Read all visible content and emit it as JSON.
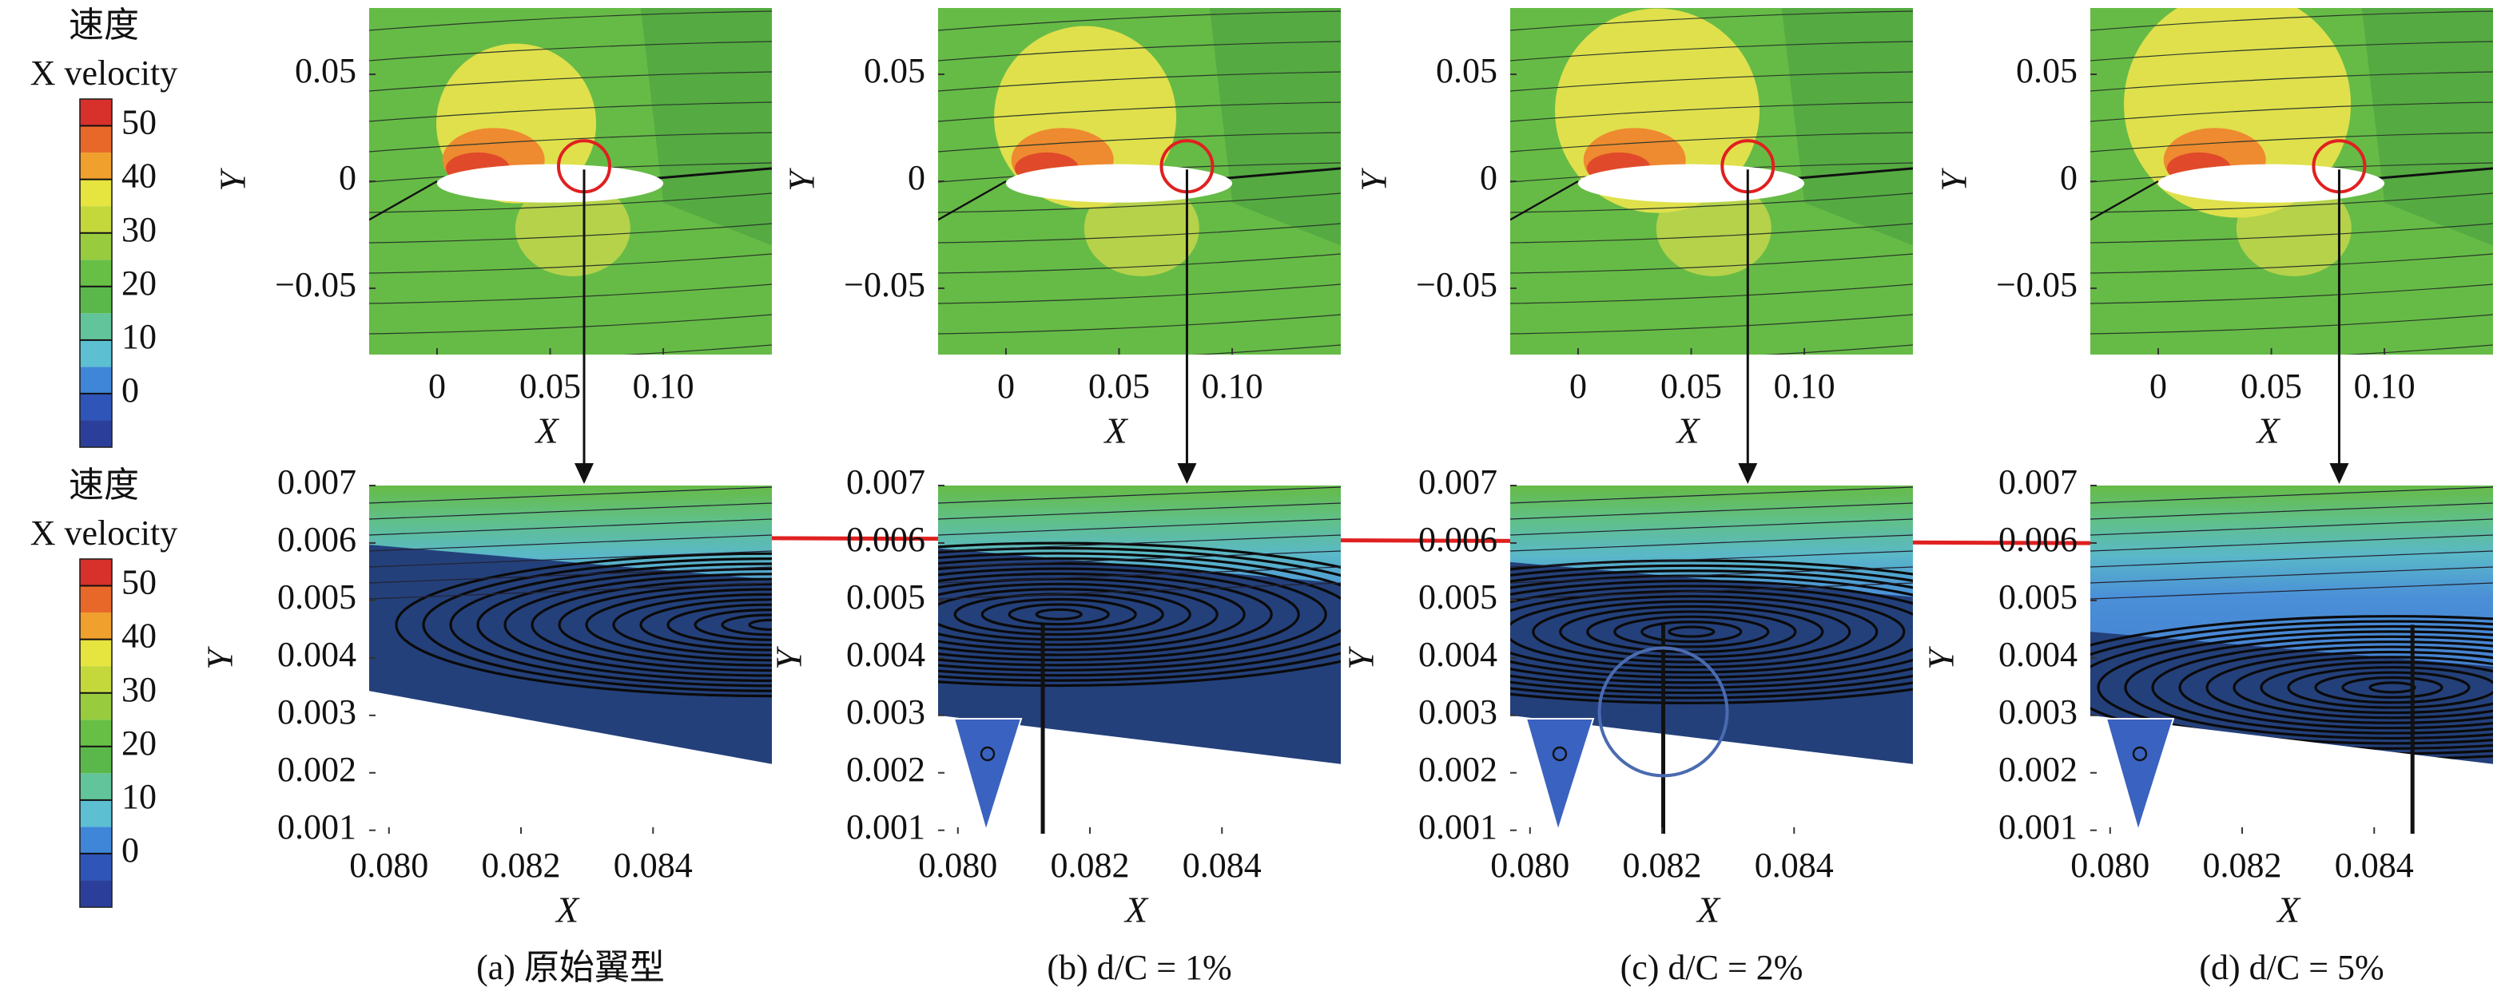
{
  "chart_data": [
    {
      "type": "colorbar",
      "title": [
        "速度",
        "X velocity"
      ],
      "ticks": [
        50,
        40,
        30,
        20,
        10,
        0
      ],
      "ylim": [
        -10,
        55
      ],
      "colors": [
        "#2b3f9a",
        "#2f55b8",
        "#3f86d8",
        "#5cc0d2",
        "#62c49a",
        "#5ab84a",
        "#68bf46",
        "#98cc3e",
        "#c4d83c",
        "#e6e43e",
        "#f0a02c",
        "#e8682a",
        "#d8302a"
      ]
    },
    {
      "type": "colorbar",
      "title": [
        "速度",
        "X velocity"
      ],
      "ticks": [
        50,
        40,
        30,
        20,
        10,
        0
      ],
      "ylim": [
        -10,
        55
      ],
      "colors": [
        "#2b3f9a",
        "#2f55b8",
        "#3f86d8",
        "#5cc0d2",
        "#62c49a",
        "#5ab84a",
        "#68bf46",
        "#98cc3e",
        "#c4d83c",
        "#e6e43e",
        "#f0a02c",
        "#e8682a",
        "#d8302a"
      ]
    },
    {
      "type": "contour",
      "xlabel": "X",
      "ylabel": "Y",
      "xlim": [
        -0.03,
        0.148
      ],
      "ylim": [
        -0.081,
        0.081
      ],
      "xticks": [
        0,
        0.05,
        {
          "value": 0.1,
          "label": "0.10"
        }
      ],
      "yticks": [
        {
          "value": -0.05,
          "label": "−0.05"
        },
        0,
        0.05
      ]
    },
    {
      "type": "contour",
      "xlabel": "X",
      "ylabel": "Y",
      "xlim": [
        -0.03,
        0.148
      ],
      "ylim": [
        -0.081,
        0.081
      ],
      "xticks": [
        0,
        0.05,
        {
          "value": 0.1,
          "label": "0.10"
        }
      ],
      "yticks": [
        {
          "value": -0.05,
          "label": "−0.05"
        },
        0,
        0.05
      ]
    },
    {
      "type": "contour",
      "xlabel": "X",
      "ylabel": "Y",
      "xlim": [
        -0.03,
        0.148
      ],
      "ylim": [
        -0.081,
        0.081
      ],
      "xticks": [
        0,
        0.05,
        {
          "value": 0.1,
          "label": "0.10"
        }
      ],
      "yticks": [
        {
          "value": -0.05,
          "label": "−0.05"
        },
        0,
        0.05
      ]
    },
    {
      "type": "contour",
      "xlabel": "X",
      "ylabel": "Y",
      "xlim": [
        -0.03,
        0.148
      ],
      "ylim": [
        -0.081,
        0.081
      ],
      "xticks": [
        0,
        0.05,
        {
          "value": 0.1,
          "label": "0.10"
        }
      ],
      "yticks": [
        {
          "value": -0.05,
          "label": "−0.05"
        },
        0,
        0.05
      ]
    },
    {
      "type": "contour",
      "xlabel": "X",
      "ylabel": "Y",
      "xlim": [
        0.0797,
        0.0858
      ],
      "ylim": [
        0.00094,
        0.007
      ],
      "xticks": [
        {
          "value": 0.08,
          "label": "0.080"
        },
        0.082,
        0.084
      ],
      "yticks": [
        0.001,
        0.002,
        0.003,
        0.004,
        0.005,
        0.006,
        0.007
      ],
      "caption": "(a) 原始翼型"
    },
    {
      "type": "contour",
      "xlabel": "X",
      "ylabel": "Y",
      "xlim": [
        0.0797,
        0.0858
      ],
      "ylim": [
        0.00094,
        0.007
      ],
      "xticks": [
        {
          "value": 0.08,
          "label": "0.080"
        },
        0.082,
        0.084
      ],
      "yticks": [
        0.001,
        0.002,
        0.003,
        0.004,
        0.005,
        0.006,
        0.007
      ],
      "caption": "(b) d/C = 1%"
    },
    {
      "type": "contour",
      "xlabel": "X",
      "ylabel": "Y",
      "xlim": [
        0.0797,
        0.0858
      ],
      "ylim": [
        0.00094,
        0.007
      ],
      "xticks": [
        {
          "value": 0.08,
          "label": "0.080"
        },
        0.082,
        0.084
      ],
      "yticks": [
        0.001,
        0.002,
        0.003,
        0.004,
        0.005,
        0.006,
        0.007
      ],
      "caption": "(c) d/C = 2%"
    },
    {
      "type": "contour",
      "xlabel": "X",
      "ylabel": "Y",
      "xlim": [
        0.0797,
        0.0858
      ],
      "ylim": [
        0.00094,
        0.007
      ],
      "xticks": [
        {
          "value": 0.08,
          "label": "0.080"
        },
        0.082,
        0.084
      ],
      "yticks": [
        0.001,
        0.002,
        0.003,
        0.004,
        0.005,
        0.006,
        0.007
      ],
      "caption": "(d) d/C = 5%"
    }
  ]
}
